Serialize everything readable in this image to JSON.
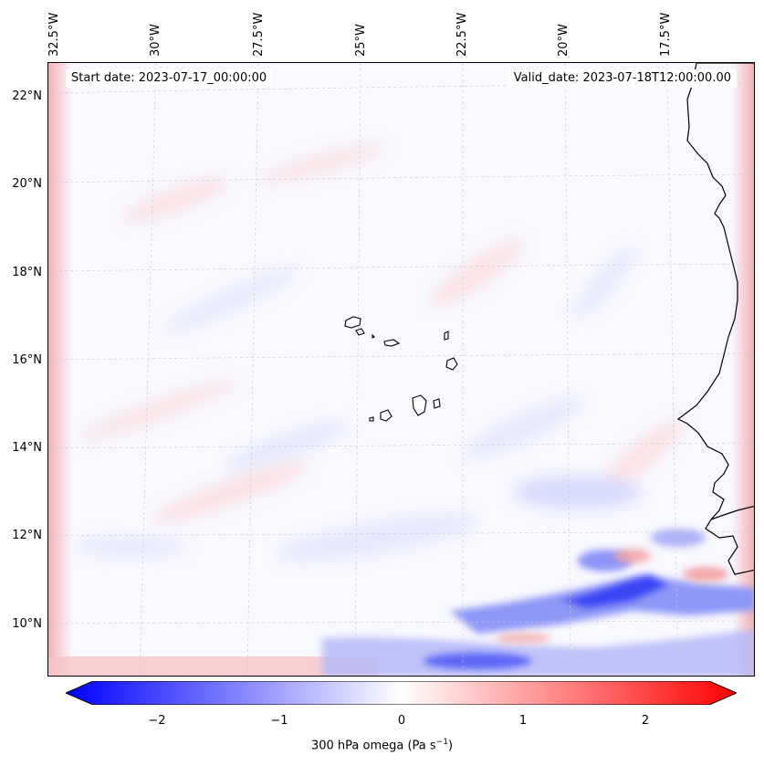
{
  "map": {
    "start_date": "Start date: 2023-07-17_00:00:00",
    "valid_date": "Valid_date: 2023-07-18T12:00:00.00",
    "lon_labels": [
      "32.5°W",
      "30°W",
      "27.5°W",
      "25°W",
      "22.5°W",
      "20°W",
      "17.5°W"
    ],
    "lat_labels": [
      "22°N",
      "20°N",
      "18°N",
      "16°N",
      "14°N",
      "12°N",
      "10°N"
    ]
  },
  "colorbar": {
    "ticks": [
      "−2",
      "−1",
      "0",
      "1",
      "2"
    ],
    "label": "300 hPa omega (Pa s",
    "label_sup": "−1",
    "label_close": ")",
    "min_color": "#0000ff",
    "mid_color": "#ffffff",
    "max_color": "#ff0000"
  }
}
